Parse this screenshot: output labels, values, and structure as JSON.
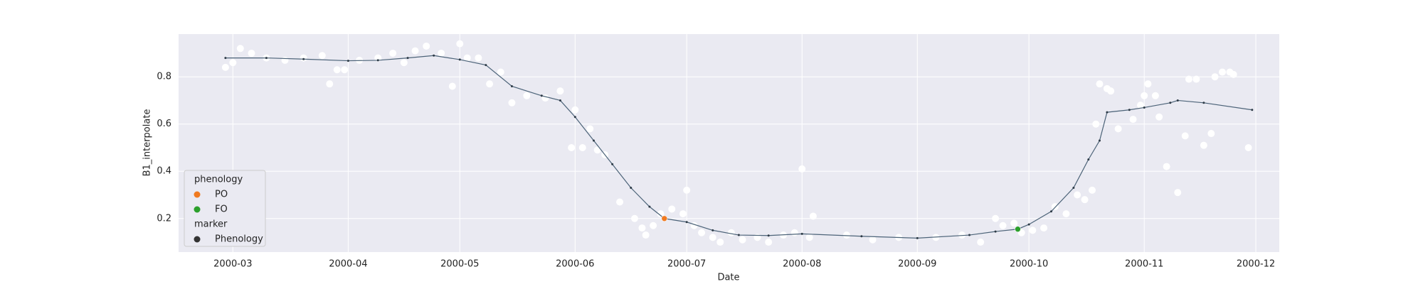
{
  "chart_data": {
    "type": "line",
    "x_label": "Date",
    "y_label": "B1_interpolate",
    "xlim": [
      46.4,
      342.3
    ],
    "ylim": [
      0.058,
      0.981
    ],
    "xticks": [
      {
        "value": 61,
        "label": "2000-03"
      },
      {
        "value": 92,
        "label": "2000-04"
      },
      {
        "value": 122,
        "label": "2000-05"
      },
      {
        "value": 153,
        "label": "2000-06"
      },
      {
        "value": 183,
        "label": "2000-07"
      },
      {
        "value": 214,
        "label": "2000-08"
      },
      {
        "value": 245,
        "label": "2000-09"
      },
      {
        "value": 275,
        "label": "2000-10"
      },
      {
        "value": 306,
        "label": "2000-11"
      },
      {
        "value": 336,
        "label": "2000-12"
      }
    ],
    "yticks": [
      0.2,
      0.4,
      0.6,
      0.8
    ],
    "grid": true,
    "background": "#eaeaf2",
    "series": [
      {
        "type": "scatter",
        "color": "#ffffff",
        "x": [
          59,
          61,
          63,
          66,
          70,
          75,
          80,
          85,
          87,
          89,
          91,
          95,
          100,
          104,
          107,
          110,
          113,
          117,
          120,
          122,
          124,
          127,
          130,
          133,
          136,
          140,
          145,
          149,
          152,
          153,
          155,
          157,
          159,
          161,
          165,
          169,
          171,
          172,
          174,
          176,
          179,
          182,
          183,
          185,
          187,
          190,
          192,
          195,
          198,
          202,
          205,
          209,
          212,
          214,
          216,
          217,
          226,
          233,
          240,
          250,
          257,
          262,
          266,
          268,
          271,
          273,
          276,
          279,
          282,
          285,
          288,
          290,
          292,
          293,
          294,
          296,
          297,
          299,
          303,
          305,
          306,
          307,
          309,
          310,
          312,
          315,
          317,
          318,
          320,
          322,
          324,
          325,
          327,
          329,
          330,
          334
        ],
        "values": [
          0.84,
          0.86,
          0.92,
          0.9,
          0.88,
          0.87,
          0.88,
          0.89,
          0.77,
          0.83,
          0.83,
          0.87,
          0.88,
          0.9,
          0.86,
          0.91,
          0.93,
          0.9,
          0.76,
          0.94,
          0.88,
          0.88,
          0.77,
          0.82,
          0.69,
          0.72,
          0.71,
          0.74,
          0.5,
          0.66,
          0.5,
          0.58,
          0.49,
          0.47,
          0.27,
          0.2,
          0.16,
          0.13,
          0.17,
          0.22,
          0.24,
          0.22,
          0.32,
          0.17,
          0.14,
          0.12,
          0.1,
          0.14,
          0.11,
          0.12,
          0.1,
          0.13,
          0.14,
          0.41,
          0.12,
          0.21,
          0.13,
          0.11,
          0.12,
          0.12,
          0.13,
          0.1,
          0.2,
          0.17,
          0.18,
          0.14,
          0.15,
          0.16,
          0.25,
          0.22,
          0.3,
          0.28,
          0.32,
          0.6,
          0.77,
          0.75,
          0.74,
          0.58,
          0.62,
          0.68,
          0.72,
          0.77,
          0.72,
          0.63,
          0.42,
          0.31,
          0.55,
          0.79,
          0.79,
          0.51,
          0.56,
          0.8,
          0.82,
          0.82,
          0.81,
          0.5
        ]
      },
      {
        "type": "line",
        "color": "#4c6378",
        "x": [
          59,
          70,
          80,
          92,
          100,
          108,
          115,
          122,
          129,
          136,
          144,
          149,
          153,
          158,
          163,
          168,
          173,
          177,
          183,
          190,
          197,
          205,
          214,
          230,
          245,
          259,
          266,
          272,
          275,
          281,
          287,
          291,
          294,
          296,
          302,
          306,
          313,
          315,
          322,
          335
        ],
        "values": [
          0.88,
          0.88,
          0.875,
          0.868,
          0.87,
          0.88,
          0.89,
          0.873,
          0.85,
          0.76,
          0.72,
          0.7,
          0.63,
          0.53,
          0.43,
          0.33,
          0.25,
          0.2,
          0.185,
          0.15,
          0.13,
          0.128,
          0.135,
          0.125,
          0.117,
          0.13,
          0.145,
          0.155,
          0.175,
          0.23,
          0.33,
          0.45,
          0.53,
          0.65,
          0.66,
          0.67,
          0.69,
          0.7,
          0.69,
          0.66
        ]
      },
      {
        "type": "scatter",
        "name": "PO",
        "color": "#f07a20",
        "x": [
          177
        ],
        "values": [
          0.2
        ]
      },
      {
        "type": "scatter",
        "name": "FO",
        "color": "#2ca02c",
        "x": [
          272
        ],
        "values": [
          0.155
        ]
      }
    ],
    "legend": {
      "title": "phenology",
      "marker_title": "marker",
      "marker_name": "Phenology",
      "marker_color": "#333333",
      "corner": "lower left"
    }
  }
}
